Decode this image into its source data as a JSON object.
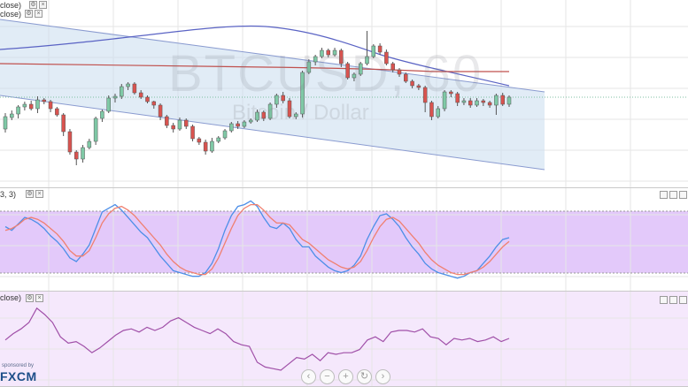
{
  "watermark": {
    "symbol": "BTCUSD, 60",
    "name": "Bitcoin / Dollar"
  },
  "panes": {
    "main": {
      "label": "close)"
    },
    "main2": {
      "label": "close)"
    },
    "stoch": {
      "label": "3, 3)"
    },
    "rsi": {
      "label": "close)"
    }
  },
  "branding": {
    "small": "sponsored by",
    "logo": "FXCM"
  },
  "nav_icons": [
    "zoom-out-icon",
    "zoom-in-icon",
    "reset-icon",
    "scroll-right-icon"
  ],
  "nav_glyphs": [
    "−",
    "+",
    "↻",
    "›"
  ],
  "nav_first": "‹",
  "colors": {
    "up": "#7fc9a6",
    "down": "#d9534f",
    "channel": "#c8dcef",
    "channel_line": "#8a9bd0",
    "ma_blue": "#5a63c4",
    "ma_red": "#c0504d",
    "stoch_band": "#e3c9fa",
    "stoch_k": "#4d8fe8",
    "stoch_d": "#f08070",
    "rsi_band": "#f5e8fc",
    "rsi_line": "#a050a8"
  },
  "chart_data": [
    {
      "type": "candlestick",
      "title": "BTCUSD, 60",
      "subtitle": "Bitcoin / Dollar",
      "ylim": [
        0,
        212
      ],
      "candles": [
        [
          66,
          80,
          62,
          84
        ],
        [
          79,
          83,
          76,
          87
        ],
        [
          83,
          91,
          78,
          93
        ],
        [
          91,
          94,
          87,
          97
        ],
        [
          94,
          89,
          87,
          98
        ],
        [
          89,
          99,
          84,
          103
        ],
        [
          99,
          97,
          94,
          101
        ],
        [
          97,
          89,
          85,
          99
        ],
        [
          89,
          82,
          80,
          91
        ],
        [
          82,
          63,
          58,
          84
        ],
        [
          63,
          40,
          37,
          66
        ],
        [
          40,
          32,
          25,
          42
        ],
        [
          32,
          45,
          28,
          48
        ],
        [
          45,
          52,
          43,
          55
        ],
        [
          52,
          78,
          48,
          80
        ],
        [
          78,
          86,
          74,
          88
        ],
        [
          86,
          101,
          84,
          104
        ],
        [
          101,
          103,
          96,
          106
        ],
        [
          103,
          114,
          100,
          117
        ],
        [
          114,
          117,
          110,
          119
        ],
        [
          117,
          107,
          105,
          119
        ],
        [
          107,
          102,
          100,
          110
        ],
        [
          102,
          97,
          95,
          104
        ],
        [
          97,
          93,
          89,
          98
        ],
        [
          93,
          80,
          76,
          95
        ],
        [
          80,
          70,
          67,
          82
        ],
        [
          70,
          66,
          62,
          73
        ],
        [
          66,
          76,
          64,
          79
        ],
        [
          76,
          69,
          66,
          78
        ],
        [
          69,
          55,
          52,
          71
        ],
        [
          55,
          51,
          48,
          57
        ],
        [
          51,
          41,
          37,
          54
        ],
        [
          41,
          52,
          39,
          56
        ],
        [
          52,
          56,
          50,
          58
        ],
        [
          56,
          64,
          54,
          66
        ],
        [
          64,
          72,
          62,
          74
        ],
        [
          72,
          69,
          66,
          75
        ],
        [
          69,
          74,
          67,
          76
        ],
        [
          74,
          76,
          72,
          78
        ],
        [
          76,
          85,
          74,
          88
        ],
        [
          85,
          78,
          75,
          87
        ],
        [
          78,
          94,
          76,
          96
        ],
        [
          94,
          104,
          90,
          106
        ],
        [
          104,
          98,
          95,
          108
        ],
        [
          98,
          80,
          78,
          101
        ],
        [
          80,
          83,
          77,
          85
        ],
        [
          83,
          130,
          79,
          132
        ],
        [
          130,
          142,
          128,
          145
        ],
        [
          142,
          148,
          138,
          150
        ],
        [
          148,
          155,
          146,
          158
        ],
        [
          155,
          150,
          147,
          157
        ],
        [
          150,
          155,
          148,
          158
        ],
        [
          155,
          140,
          136,
          157
        ],
        [
          140,
          124,
          122,
          142
        ],
        [
          124,
          128,
          120,
          130
        ],
        [
          128,
          140,
          126,
          142
        ],
        [
          140,
          148,
          138,
          177
        ],
        [
          148,
          160,
          146,
          162
        ],
        [
          160,
          153,
          150,
          163
        ],
        [
          153,
          140,
          138,
          156
        ],
        [
          140,
          133,
          130,
          142
        ],
        [
          133,
          128,
          125,
          135
        ],
        [
          128,
          120,
          118,
          130
        ],
        [
          120,
          115,
          112,
          122
        ],
        [
          115,
          113,
          110,
          117
        ],
        [
          113,
          96,
          85,
          115
        ],
        [
          96,
          80,
          76,
          98
        ],
        [
          80,
          89,
          78,
          92
        ],
        [
          89,
          108,
          86,
          110
        ],
        [
          108,
          106,
          102,
          110
        ],
        [
          106,
          96,
          92,
          108
        ],
        [
          96,
          98,
          93,
          101
        ],
        [
          98,
          93,
          90,
          101
        ],
        [
          93,
          98,
          91,
          101
        ],
        [
          98,
          96,
          92,
          100
        ],
        [
          96,
          93,
          90,
          98
        ],
        [
          93,
          104,
          82,
          106
        ],
        [
          104,
          94,
          92,
          107
        ],
        [
          94,
          102,
          91,
          104
        ]
      ]
    },
    {
      "type": "line",
      "ylim": [
        0,
        100
      ],
      "series": [
        {
          "values": [
            62,
            58,
            65,
            72,
            70,
            66,
            60,
            52,
            46,
            38,
            28,
            24,
            32,
            42,
            60,
            78,
            82,
            86,
            80,
            72,
            64,
            56,
            50,
            40,
            30,
            22,
            14,
            12,
            10,
            8,
            8,
            12,
            22,
            38,
            58,
            74,
            84,
            86,
            90,
            84,
            72,
            62,
            60,
            66,
            60,
            48,
            40,
            40,
            30,
            24,
            18,
            14,
            12,
            14,
            20,
            30,
            48,
            62,
            74,
            76,
            70,
            62,
            50,
            40,
            32,
            22,
            16,
            12,
            10,
            8,
            6,
            8,
            12,
            14,
            22,
            30,
            40,
            48,
            50
          ]
        },
        {
          "values": [
            58,
            60,
            64,
            70,
            72,
            70,
            66,
            60,
            54,
            46,
            36,
            30,
            30,
            36,
            50,
            66,
            76,
            82,
            84,
            80,
            74,
            66,
            58,
            50,
            42,
            32,
            24,
            18,
            14,
            12,
            10,
            10,
            16,
            28,
            44,
            60,
            74,
            82,
            86,
            86,
            80,
            72,
            66,
            66,
            64,
            56,
            48,
            44,
            38,
            32,
            26,
            22,
            18,
            16,
            18,
            24,
            36,
            50,
            62,
            70,
            72,
            68,
            60,
            52,
            44,
            34,
            26,
            20,
            16,
            12,
            10,
            10,
            12,
            14,
            18,
            24,
            32,
            40,
            46
          ]
        }
      ]
    },
    {
      "type": "line",
      "ylim": [
        0,
        100
      ],
      "series": [
        {
          "values": [
            48,
            56,
            62,
            70,
            88,
            80,
            70,
            52,
            44,
            46,
            40,
            32,
            38,
            46,
            54,
            60,
            62,
            58,
            64,
            60,
            64,
            72,
            76,
            70,
            64,
            60,
            56,
            62,
            56,
            46,
            42,
            40,
            20,
            14,
            12,
            10,
            18,
            26,
            24,
            30,
            22,
            32,
            30,
            32,
            32,
            36,
            48,
            52,
            46,
            58,
            60,
            60,
            58,
            62,
            52,
            50,
            42,
            50,
            48,
            50,
            46,
            48,
            52,
            46,
            50
          ]
        }
      ]
    }
  ]
}
